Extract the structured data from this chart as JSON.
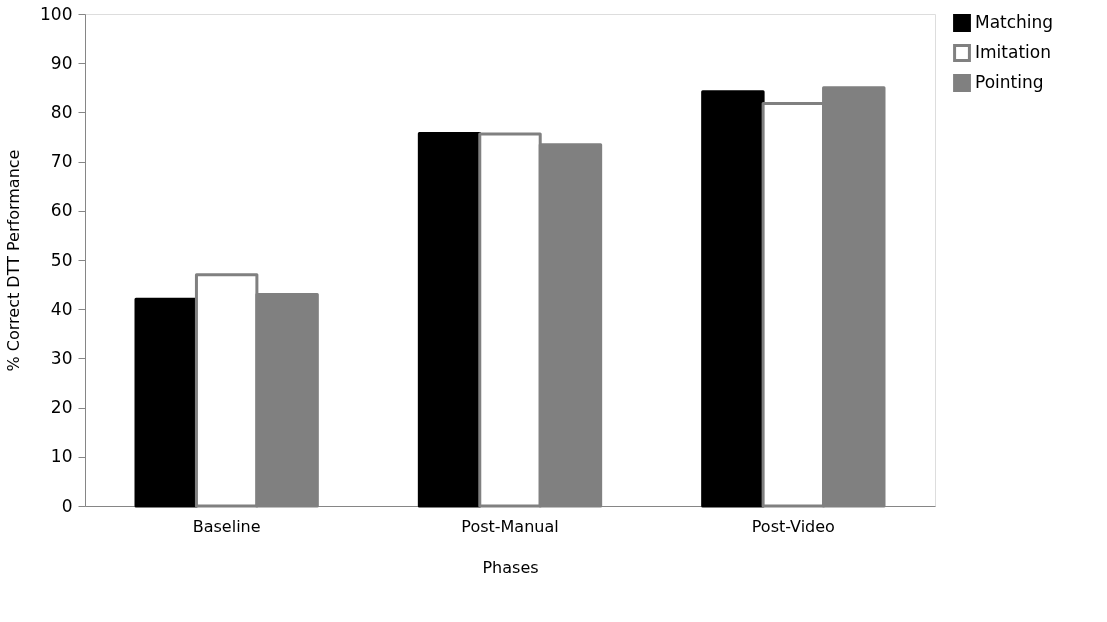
{
  "chart_data": {
    "type": "bar",
    "xlabel": "Phases",
    "ylabel": "% Correct DTT Performance",
    "categories": [
      "Baseline",
      "Post-Manual",
      "Post-Video"
    ],
    "series": [
      {
        "name": "Matching",
        "color": "#000000",
        "values": [
          42,
          75.7,
          84.2
        ]
      },
      {
        "name": "Imitation",
        "color": "#ffffff",
        "values": [
          47,
          75.6,
          81.8
        ]
      },
      {
        "name": "Pointing",
        "color": "#808080",
        "values": [
          43,
          73.4,
          85
        ]
      }
    ],
    "ylim": [
      0,
      100
    ],
    "yticks": [
      0,
      10,
      20,
      30,
      40,
      50,
      60,
      70,
      80,
      90,
      100
    ],
    "grid": false,
    "legend": "right"
  }
}
